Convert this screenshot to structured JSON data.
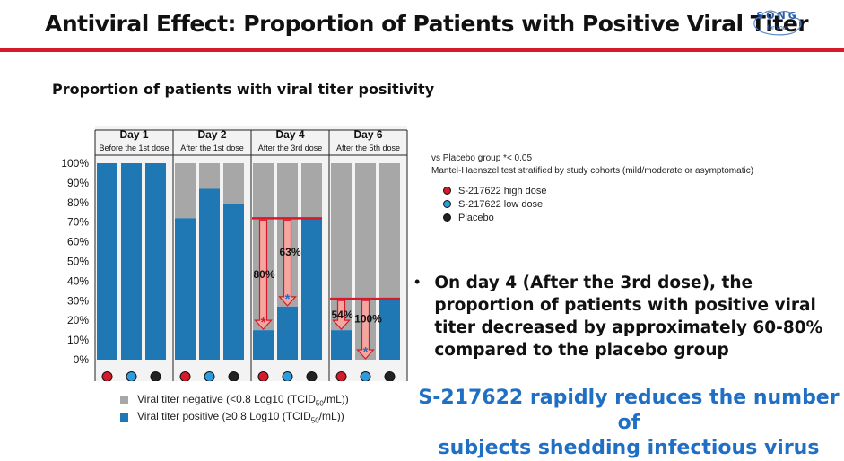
{
  "title": "Antiviral Effect: Proportion of Patients with Positive Viral Titer",
  "logo": {
    "line1": "SONG",
    "line2": "for you!"
  },
  "subtitle": "Proportion of patients with viral titer positivity",
  "colors": {
    "negative": "#a7a7a7",
    "positive": "#1f77b4",
    "high_dose": "#d7192a",
    "low_dose": "#2e9bdc",
    "placebo": "#222222",
    "accent_red": "#d7192a",
    "arrow_fill": "#f4a6a0",
    "conclusion": "#1f6fc5"
  },
  "chart_data": {
    "type": "bar",
    "stacked": true,
    "ylim": [
      0,
      100
    ],
    "yticks": [
      "0%",
      "10%",
      "20%",
      "30%",
      "40%",
      "50%",
      "60%",
      "70%",
      "80%",
      "90%",
      "100%"
    ],
    "groups": [
      {
        "day": "Day 1",
        "note": "Before the 1st dose",
        "positive": [
          100,
          100,
          100
        ]
      },
      {
        "day": "Day 2",
        "note": "After the 1st dose",
        "positive": [
          72,
          87,
          79
        ]
      },
      {
        "day": "Day 4",
        "note": "After the 3rd dose",
        "positive": [
          15,
          27,
          72
        ]
      },
      {
        "day": "Day 6",
        "note": "After the 5th dose",
        "positive": [
          15,
          0,
          31
        ]
      }
    ],
    "arms": [
      "high",
      "low",
      "placebo"
    ],
    "series": [
      {
        "name": "Viral titer negative (<0.8 Log10 (TCID50/mL))",
        "color": "#a7a7a7"
      },
      {
        "name": "Viral titer positive (≥0.8 Log10 (TCID50/mL))",
        "color": "#1f77b4"
      }
    ],
    "annotations": [
      {
        "group": 2,
        "arm": 0,
        "label": "80%",
        "star": "*",
        "star_color": "#d7192a"
      },
      {
        "group": 2,
        "arm": 1,
        "label": "63%",
        "star": "*",
        "star_color": "#1f6fc5"
      },
      {
        "group": 3,
        "arm": 0,
        "label": "54%",
        "star": "",
        "star_color": ""
      },
      {
        "group": 3,
        "arm": 1,
        "label": "100%",
        "star": "*",
        "star_color": "#1f6fc5"
      }
    ]
  },
  "notes": {
    "line1": "vs Placebo group *< 0.05",
    "line2": "Mantel-Haenszel test stratified by study cohorts (mild/moderate or asymptomatic)"
  },
  "legend_arms": [
    {
      "label": "S-217622 high dose",
      "color": "#d7192a"
    },
    {
      "label": "S-217622 low dose",
      "color": "#2e9bdc"
    },
    {
      "label": "Placebo",
      "color": "#222222"
    }
  ],
  "legend_bars": {
    "negative_pre": "Viral titer negative (<0.8 Log10 (TCID",
    "negative_sub": "50",
    "negative_post": "/mL))",
    "positive_pre": "Viral titer positive (≥0.8 Log10 (TCID",
    "positive_sub": "50",
    "positive_post": "/mL))"
  },
  "bullet": {
    "mark": "•",
    "text": "On day 4 (After the 3rd dose), the proportion of patients with positive viral titer decreased by approximately 60-80% compared to the placebo group"
  },
  "conclusion": {
    "line1": "S-217622 rapidly reduces the number of",
    "line2": "subjects shedding infectious virus"
  }
}
